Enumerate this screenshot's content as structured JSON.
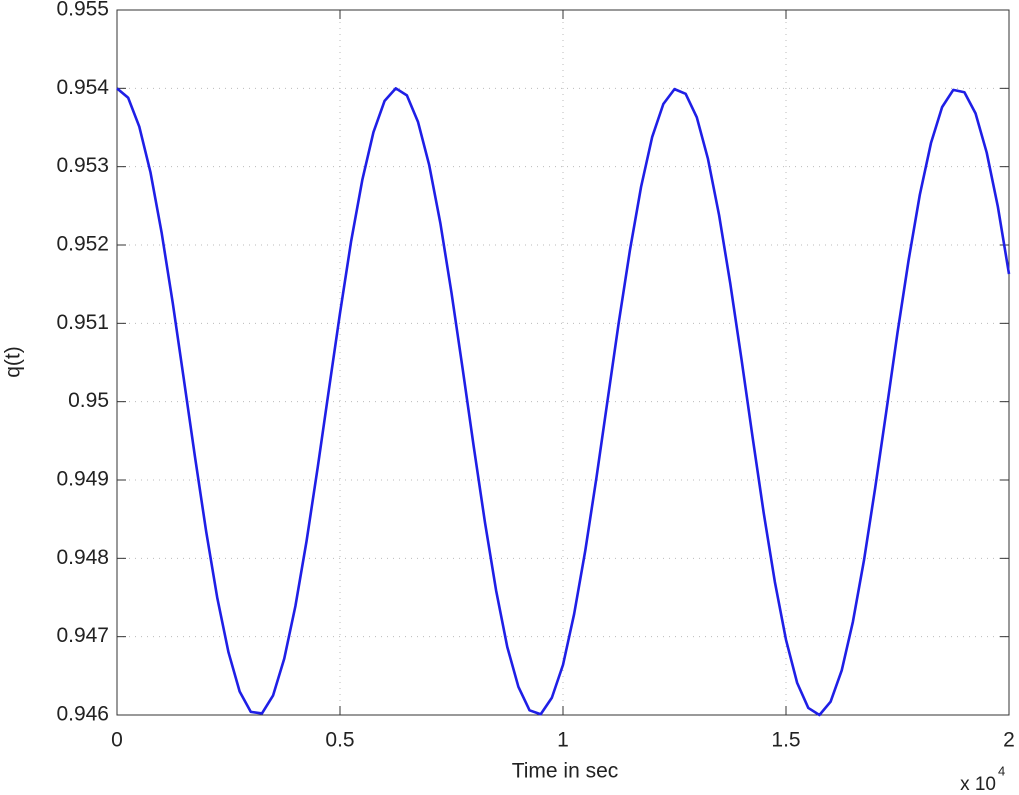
{
  "chart_data": {
    "type": "line",
    "xlabel": "Time in sec",
    "ylabel": "q(t)",
    "x_multiplier": {
      "base": "x 10",
      "exponent": "4"
    },
    "x": [
      0,
      0.025,
      0.05,
      0.075,
      0.1,
      0.125,
      0.15,
      0.175,
      0.2,
      0.225,
      0.25,
      0.275,
      0.3,
      0.325,
      0.35,
      0.375,
      0.4,
      0.425,
      0.45,
      0.475,
      0.5,
      0.525,
      0.55,
      0.575,
      0.6,
      0.625,
      0.65,
      0.675,
      0.7,
      0.725,
      0.75,
      0.775,
      0.8,
      0.825,
      0.85,
      0.875,
      0.9,
      0.925,
      0.95,
      0.975,
      1,
      1.025,
      1.05,
      1.075,
      1.1,
      1.125,
      1.15,
      1.175,
      1.2,
      1.225,
      1.25,
      1.275,
      1.3,
      1.325,
      1.35,
      1.375,
      1.4,
      1.425,
      1.45,
      1.475,
      1.5,
      1.525,
      1.55,
      1.575,
      1.6,
      1.625,
      1.65,
      1.675,
      1.7,
      1.725,
      1.75,
      1.775,
      1.8,
      1.825,
      1.85,
      1.875,
      1.9,
      1.925,
      1.95,
      1.975,
      2
    ],
    "series": [
      {
        "name": "q(t)",
        "color": "#1f1fe6",
        "values": [
          0.954,
          0.95388,
          0.95351,
          0.95293,
          0.95216,
          0.95126,
          0.95028,
          0.94929,
          0.94834,
          0.94749,
          0.9468,
          0.9463,
          0.94604,
          0.94602,
          0.94625,
          0.94672,
          0.94739,
          0.94822,
          0.94916,
          0.95015,
          0.95113,
          0.95205,
          0.95283,
          0.95344,
          0.95384,
          0.954,
          0.95391,
          0.95357,
          0.95302,
          0.95228,
          0.95139,
          0.95042,
          0.94942,
          0.94846,
          0.94759,
          0.94687,
          0.94636,
          0.94606,
          0.94601,
          0.94622,
          0.94664,
          0.94729,
          0.9481,
          0.94903,
          0.95002,
          0.95101,
          0.95193,
          0.95274,
          0.95338,
          0.9538,
          0.95399,
          0.95393,
          0.95363,
          0.9531,
          0.95238,
          0.95151,
          0.95055,
          0.94955,
          0.94858,
          0.9477,
          0.94696,
          0.94641,
          0.94609,
          0.946,
          0.94617,
          0.94657,
          0.94719,
          0.94798,
          0.9489,
          0.94988,
          0.95088,
          0.95181,
          0.95264,
          0.9533,
          0.95376,
          0.95398,
          0.95395,
          0.95368,
          0.95318,
          0.95249,
          0.95163
        ]
      }
    ],
    "xlim": [
      0,
      2
    ],
    "xticks": [
      0,
      0.5,
      1,
      1.5,
      2
    ],
    "ylim": [
      0.946,
      0.955
    ],
    "yticks": [
      0.946,
      0.947,
      0.948,
      0.949,
      0.95,
      0.951,
      0.952,
      0.953,
      0.954,
      0.955
    ],
    "grid": true
  }
}
